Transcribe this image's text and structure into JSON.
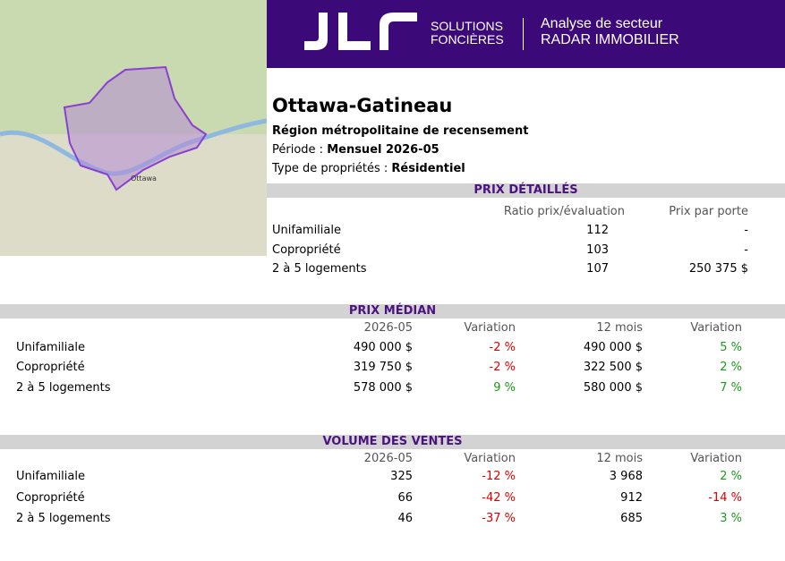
{
  "header": {
    "brand_line1": "SOLUTIONS",
    "brand_line2": "FONCIÈRES",
    "product_line1": "Analyse de secteur",
    "product_line2": "RADAR IMMOBILIER"
  },
  "map": {
    "labels": [
      "Ottawa"
    ]
  },
  "region": {
    "title": "Ottawa-Gatineau",
    "subtitle": "Région métropolitaine de recensement",
    "period_label": "Période :",
    "period": "Mensuel 2026-05",
    "type_label": "Type de propriétés :",
    "type": "Résidentiel"
  },
  "detailed_prices": {
    "title": "PRIX DÉTAILLÉS",
    "columns": [
      "Ratio prix/évaluation",
      "Prix par porte"
    ],
    "rows": [
      [
        "Unifamiliale",
        "112",
        "-"
      ],
      [
        "Copropriété",
        "103",
        "-"
      ],
      [
        "2 à 5 logements",
        "107",
        "250 375 $"
      ]
    ]
  },
  "median_price": {
    "title": "PRIX MÉDIAN",
    "columns": [
      "2026-05",
      "Variation",
      "12 mois",
      "Variation"
    ],
    "rows": [
      [
        "Unifamiliale",
        "490 000 $",
        "-2 %",
        "490 000 $",
        "5 %"
      ],
      [
        "Copropriété",
        "319 750 $",
        "-2 %",
        "322 500 $",
        "2 %"
      ],
      [
        "2 à 5 logements",
        "578 000 $",
        "9 %",
        "580 000 $",
        "7 %"
      ]
    ]
  },
  "sales_volume": {
    "title": "VOLUME DES VENTES",
    "columns": [
      "2026-05",
      "Variation",
      "12 mois",
      "Variation"
    ],
    "rows": [
      [
        "Unifamiliale",
        "325",
        "-12 %",
        "3 968",
        "2 %"
      ],
      [
        "Copropriété",
        "66",
        "-42 %",
        "912",
        "-14 %"
      ],
      [
        "2 à 5 logements",
        "46",
        "-37 %",
        "685",
        "3 %"
      ]
    ]
  }
}
